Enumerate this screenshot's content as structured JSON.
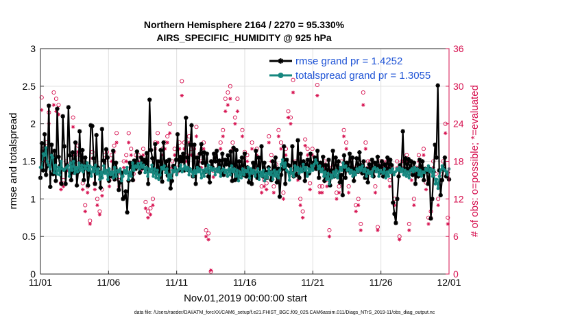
{
  "chart_data": {
    "type": "line",
    "title_line1": "Northern Hemisphere 2164 / 2270 = 95.330%",
    "title_line2": "AIRS_SPECIFIC_HUMIDITY @ 925 hPa",
    "xlabel": "Nov.01,2019 00:00:00 start",
    "ylabel_left": "rmse and totalspread",
    "ylabel_right": "# of obs: o=possible; *=evaluated",
    "xlim": [
      0,
      30
    ],
    "ylim_left": [
      0,
      3
    ],
    "ylim_right": [
      0,
      36
    ],
    "x_ticks": [
      0,
      5,
      10,
      15,
      20,
      25,
      30
    ],
    "x_tick_labels": [
      "11/01",
      "11/06",
      "11/11",
      "11/16",
      "11/21",
      "11/26",
      "12/01"
    ],
    "y_ticks_left": [
      0,
      0.5,
      1,
      1.5,
      2,
      2.5,
      3
    ],
    "y_tick_labels_left": [
      "0",
      "0.5",
      "1",
      "1.5",
      "2",
      "2.5",
      "3"
    ],
    "y_ticks_right": [
      0,
      6,
      12,
      18,
      24,
      30,
      36
    ],
    "y_tick_labels_right": [
      "0",
      "6",
      "12",
      "18",
      "24",
      "30",
      "36"
    ],
    "grid": true,
    "legend_position": "top-right",
    "series": [
      {
        "name": "rmse grand pr = 1.4252",
        "color": "#000000",
        "marker": "asterisk",
        "values": [
          1.28,
          1.74,
          1.38,
          1.86,
          1.32,
          1.44,
          2.24,
          1.16,
          1.72,
          1.33,
          1.64,
          1.24,
          2.2,
          1.56,
          1.44,
          1.2,
          2.1,
          1.7,
          1.2,
          1.45,
          2.22,
          1.58,
          1.25,
          1.62,
          1.35,
          1.75,
          1.18,
          1.36,
          1.9,
          1.42,
          1.65,
          1.25,
          1.55,
          1.44,
          1.18,
          1.35,
          1.98,
          1.97,
          1.54,
          1.2,
          1.85,
          1.42,
          1.36,
          1.15,
          1.93,
          1.51,
          1.36,
          1.66,
          1.55,
          1.24,
          1.35,
          1.3,
          1.64,
          1.26,
          1.48,
          1.36,
          1.12,
          1.22,
          1.35,
          1.0,
          1.02,
          1.1,
          0.82,
          1.24,
          1.48,
          1.42,
          1.25,
          1.51,
          1.4,
          1.63,
          1.46,
          1.35,
          1.55,
          1.41,
          1.52,
          1.47,
          1.61,
          1.2,
          2.32,
          1.65,
          1.54,
          1.35,
          1.73,
          1.38,
          1.5,
          1.28,
          1.65,
          1.23,
          1.75,
          1.4,
          1.5,
          1.31,
          1.52,
          1.14,
          1.24,
          1.44,
          1.4,
          1.52,
          1.86,
          1.38,
          1.56,
          1.5,
          1.6,
          1.38,
          2.08,
          1.55,
          1.38,
          1.72,
          1.98,
          1.3,
          1.72,
          1.2,
          1.55,
          1.42,
          1.6,
          1.73,
          1.48,
          1.62,
          1.36,
          1.6,
          1.3,
          1.22,
          1.5,
          1.42,
          1.6,
          1.5,
          1.64,
          1.38,
          1.51,
          1.35,
          1.6,
          1.32,
          1.52,
          1.46,
          1.58,
          1.38,
          1.63,
          1.24,
          1.68,
          1.25,
          1.65,
          1.28,
          1.5,
          1.35,
          1.55,
          1.32,
          1.6,
          1.3,
          1.42,
          1.22,
          1.38,
          1.2,
          1.48,
          1.35,
          1.64,
          1.28,
          1.55,
          1.34,
          1.7,
          1.3,
          1.48,
          1.36,
          1.28,
          1.42,
          1.36,
          1.25,
          1.5,
          1.34,
          1.55,
          1.22,
          1.4,
          1.03,
          1.32,
          1.4,
          1.7,
          1.2,
          1.52,
          1.45,
          1.44,
          1.35,
          1.7,
          1.3,
          1.48,
          1.32,
          1.78,
          1.28,
          1.6,
          1.38,
          1.5,
          1.24,
          1.46,
          1.52,
          1.34,
          1.6,
          1.42,
          1.48,
          1.55,
          1.4,
          1.64,
          1.28,
          1.48,
          1.38,
          1.56,
          1.24,
          1.45,
          1.32,
          1.52,
          1.18,
          1.38,
          1.64,
          1.3,
          1.55,
          1.38,
          1.5,
          1.22,
          1.32,
          1.05,
          1.58,
          1.28,
          1.48,
          1.38,
          1.6,
          1.42,
          1.55,
          1.24,
          1.4,
          1.54,
          1.36,
          1.62,
          1.45,
          1.34,
          1.5,
          1.28,
          1.4,
          1.22,
          1.46,
          1.35,
          1.52,
          1.3,
          1.48,
          1.38,
          1.56,
          1.44,
          1.35,
          1.5,
          1.3,
          1.46,
          1.35,
          1.55,
          1.4,
          1.52,
          1.45,
          0.95,
          0.8,
          0.68,
          1.0,
          1.3,
          1.45,
          1.4,
          1.9,
          1.36,
          1.54,
          1.4,
          1.53,
          1.38,
          1.5,
          1.32,
          1.48,
          1.2,
          1.4,
          1.3,
          1.52,
          1.38,
          1.5,
          1.25,
          1.4,
          1.36,
          1.2,
          1.4,
          0.74,
          1.0,
          1.36,
          1.72,
          1.55,
          2.51,
          1.38,
          1.05,
          1.25,
          1.4,
          1.55,
          1.3,
          1.35,
          1.26
        ]
      },
      {
        "name": "totalspread grand pr = 1.3055",
        "color": "#16877f",
        "marker": "dot",
        "values": [
          1.42,
          1.42,
          1.6,
          1.58,
          1.68,
          1.5,
          1.45,
          1.4,
          1.58,
          1.55,
          1.35,
          1.45,
          1.33,
          1.42,
          1.32,
          1.5,
          1.4,
          1.38,
          1.4,
          1.42,
          1.44,
          1.3,
          1.48,
          1.38,
          1.5,
          1.34,
          1.42,
          1.36,
          1.48,
          1.38,
          1.45,
          1.36,
          1.44,
          1.4,
          1.48,
          1.38,
          1.44,
          1.3,
          1.42,
          1.36,
          1.45,
          1.33,
          1.4,
          1.26,
          1.36,
          1.28,
          1.44,
          1.34,
          1.38,
          1.26,
          1.4,
          1.32,
          1.36,
          1.28,
          1.42,
          1.3,
          1.38,
          1.36,
          1.4,
          1.24,
          1.3,
          1.38,
          1.34,
          1.42,
          1.26,
          1.36,
          1.3,
          1.48,
          1.38,
          1.44,
          1.42,
          1.47,
          1.4,
          1.48,
          1.42,
          1.45,
          1.35,
          1.42,
          1.3,
          1.4,
          1.36,
          1.45,
          1.3,
          1.4,
          1.28,
          1.38,
          1.26,
          1.32,
          1.42,
          1.4,
          1.44,
          1.35,
          1.4,
          1.25,
          1.32,
          1.28,
          1.38,
          1.36,
          1.42,
          1.32,
          1.38,
          1.4,
          1.45,
          1.36,
          1.4,
          1.44,
          1.38,
          1.42,
          1.32,
          1.4,
          1.36,
          1.3,
          1.38,
          1.34,
          1.42,
          1.36,
          1.4,
          1.28,
          1.38,
          1.3,
          1.4,
          1.36,
          1.45,
          1.34,
          1.42,
          1.38,
          1.4,
          1.32,
          1.4,
          1.36,
          1.42,
          1.3,
          1.38,
          1.4,
          1.35,
          1.38,
          1.3,
          1.4,
          1.32,
          1.44,
          1.36,
          1.4,
          1.3,
          1.38,
          1.24,
          1.36,
          1.28,
          1.4,
          1.32,
          1.38,
          1.36,
          1.42,
          1.28,
          1.4,
          1.34,
          1.38,
          1.3,
          1.36,
          1.4,
          1.26,
          1.36,
          1.3,
          1.38,
          1.24,
          1.34,
          1.28,
          1.4,
          1.32,
          1.36,
          1.26,
          1.38,
          1.3,
          1.36,
          1.28,
          1.38,
          1.46,
          1.52,
          1.42,
          1.48,
          1.38,
          1.36,
          1.25,
          1.4,
          1.34,
          1.3,
          1.44,
          1.38,
          1.42,
          1.34,
          1.4,
          1.36,
          1.46,
          1.38,
          1.42,
          1.3,
          1.4,
          1.36,
          1.44,
          1.38,
          1.46,
          1.52,
          1.48,
          1.4,
          1.44,
          1.36,
          1.4,
          1.3,
          1.36,
          1.26,
          1.34,
          1.2,
          1.32,
          1.28,
          1.36,
          1.3,
          1.38,
          1.28,
          1.36,
          1.42,
          1.38,
          1.48,
          1.42,
          1.44,
          1.38,
          1.4,
          1.34,
          1.38,
          1.3,
          1.36,
          1.32,
          1.4,
          1.36,
          1.42,
          1.38,
          1.44,
          1.36,
          1.4,
          1.3,
          1.38,
          1.34,
          1.36,
          1.3,
          1.4,
          1.42,
          1.36,
          1.4,
          1.3,
          1.38,
          1.36,
          1.34,
          1.4,
          1.28,
          1.36,
          1.3,
          1.38,
          1.35,
          1.4,
          1.32,
          1.36,
          1.4,
          1.38,
          1.42,
          1.36,
          1.4,
          1.32,
          1.38,
          1.3,
          1.36,
          1.28,
          1.38,
          1.4,
          1.36,
          1.42,
          1.38,
          1.4,
          1.32,
          1.38,
          1.3,
          1.36,
          1.35,
          1.4,
          1.38,
          1.44,
          1.36,
          1.4,
          1.3,
          1.38,
          1.2,
          1.26,
          1.14,
          1.3,
          1.38,
          1.44,
          1.4,
          1.38,
          1.36,
          1.32,
          1.4
        ]
      }
    ],
    "obs_possible": [
      28.2,
      20,
      21,
      25.8,
      18.5,
      29,
      28,
      27,
      14.5,
      15,
      18,
      17.5,
      16,
      25,
      19,
      20.5,
      19,
      14.5,
      11,
      14,
      8.5,
      19.5,
      14.5,
      12,
      10,
      13.5,
      19,
      19.5,
      15,
      19,
      20.5,
      22.5,
      15,
      16,
      18,
      19,
      22.5,
      20,
      16,
      19,
      19,
      17.5,
      20,
      11.5,
      10,
      10.5,
      12,
      21,
      22.5,
      18,
      20,
      21,
      22,
      24,
      18,
      20,
      17,
      21,
      30.8,
      21,
      19,
      22,
      20,
      20,
      23.5,
      19,
      18,
      21,
      7,
      6.5,
      0.4,
      16.5,
      19,
      18,
      21,
      23,
      28,
      29,
      30,
      21,
      25,
      28,
      17,
      23,
      19.5,
      19,
      16.5,
      21,
      17,
      20,
      18.5,
      14,
      15,
      14.5,
      22,
      19,
      14,
      17.5,
      23,
      21,
      13,
      20,
      26,
      25,
      31,
      18,
      16,
      12,
      10,
      21.5,
      20,
      14.5,
      20,
      18,
      30.2,
      14,
      14,
      18,
      15,
      7,
      17,
      17.5,
      13,
      14,
      18,
      23,
      21,
      14,
      18,
      17,
      11,
      12,
      8,
      29,
      21,
      18,
      18,
      17,
      14,
      7.5,
      18,
      18,
      17,
      18,
      15,
      17,
      12,
      18,
      6,
      18,
      18,
      19,
      8,
      16,
      12,
      17,
      19,
      17,
      20,
      14.6,
      9,
      10,
      18,
      16,
      12,
      16,
      18,
      24,
      9
    ],
    "obs_evaluated": [
      26.2,
      18,
      20,
      24,
      17.5,
      27,
      26,
      25.5,
      13.5,
      14,
      17,
      16.5,
      15,
      23.5,
      18,
      19.5,
      18,
      13.5,
      10,
      13,
      8,
      18.5,
      13.5,
      11,
      9.5,
      12.5,
      18,
      18.5,
      14,
      18,
      19.5,
      21,
      14,
      15,
      17,
      18,
      21,
      19,
      15,
      18,
      18,
      16.5,
      19,
      10.5,
      9,
      9.5,
      11,
      20,
      21,
      17,
      19,
      20,
      21,
      22.5,
      17,
      19,
      16,
      20,
      28.5,
      20,
      18,
      21,
      19,
      19,
      22,
      18,
      17,
      20,
      6,
      5.5,
      0.6,
      15.5,
      18,
      17,
      20,
      22,
      26,
      27,
      28,
      20,
      24,
      26,
      16,
      22,
      18.5,
      18,
      15.5,
      20,
      16,
      19,
      17.5,
      13,
      14,
      13.5,
      21,
      18,
      13,
      16.5,
      22,
      20,
      12,
      19,
      25,
      24,
      29,
      17,
      15,
      11,
      9,
      20.5,
      19,
      13.5,
      19,
      17,
      28.5,
      13,
      13,
      17,
      14,
      6,
      16,
      16.5,
      12,
      13,
      17,
      22,
      20,
      13,
      17,
      16,
      10,
      11,
      7,
      27,
      20,
      17,
      17,
      16,
      13,
      7,
      17,
      17,
      16,
      17,
      14,
      16,
      11,
      17,
      5.5,
      17,
      17,
      18,
      7,
      15,
      11,
      16,
      18,
      16,
      19,
      13.5,
      8,
      9,
      17,
      15,
      11,
      15,
      17,
      22.5,
      8
    ],
    "obs_color": "#d6104f",
    "footer": "data file: /Users/raeder/DAI/ATM_forcXX/CAM6_setup/f.e21.FHIST_BGC.f09_025.CAM6assim.011/Diags_NTrS_2019-11/obs_diag_output.nc"
  }
}
